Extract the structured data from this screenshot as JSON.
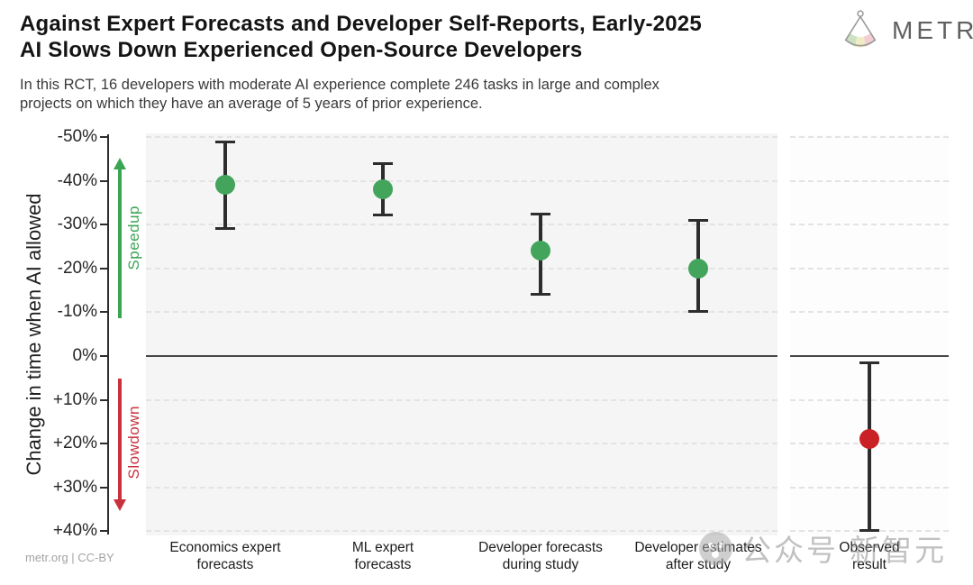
{
  "header": {
    "title_lines": [
      "Against Expert Forecasts and Developer Self-Reports, Early-2025",
      "AI Slows Down Experienced Open-Source Developers"
    ],
    "subtitle_lines": [
      "In this RCT, 16 developers with moderate AI experience complete 246 tasks in large and complex",
      "projects on which they have an average of 5 years of prior experience."
    ],
    "brand": "METR"
  },
  "annotations": {
    "speedup": "Speedup",
    "slowdown": "Slowdown"
  },
  "footer": {
    "credit": "metr.org  |  CC-BY"
  },
  "watermark": {
    "logo": "newzhiyuan-face-icon",
    "text": "公众号 新智元"
  },
  "colors": {
    "green": "#43a45b",
    "red": "#c92125",
    "green_arrow": "#3aa553",
    "red_arrow": "#c9313d",
    "errorbar": "#2d2d2d",
    "panel_bg": "#f5f5f6",
    "zero_line": "#474747"
  },
  "chart_data": {
    "type": "scatter",
    "title": "Against Expert Forecasts and Developer Self-Reports, Early-2025 AI Slows Down Experienced Open-Source Developers",
    "ylabel": "Change in time when AI allowed",
    "ylim": [
      -50,
      40
    ],
    "y_axis_inverted": true,
    "grid": "dashed horizontal",
    "yticks": [
      {
        "value": -50,
        "label": "-50%"
      },
      {
        "value": -40,
        "label": "-40%"
      },
      {
        "value": -30,
        "label": "-30%"
      },
      {
        "value": -20,
        "label": "-20%"
      },
      {
        "value": -10,
        "label": "-10%"
      },
      {
        "value": 0,
        "label": "0%"
      },
      {
        "value": 10,
        "label": "+10%"
      },
      {
        "value": 20,
        "label": "+20%"
      },
      {
        "value": 30,
        "label": "+30%"
      },
      {
        "value": 40,
        "label": "+40%"
      }
    ],
    "points": [
      {
        "category_lines": [
          "Economics expert",
          "forecasts"
        ],
        "value": -39,
        "ci": [
          -49,
          -29
        ],
        "color": "green",
        "panel": "forecasts"
      },
      {
        "category_lines": [
          "ML expert",
          "forecasts"
        ],
        "value": -38,
        "ci": [
          -44,
          -32
        ],
        "color": "green",
        "panel": "forecasts"
      },
      {
        "category_lines": [
          "Developer forecasts",
          "during study"
        ],
        "value": -24,
        "ci": [
          -32.5,
          -14
        ],
        "color": "green",
        "panel": "forecasts"
      },
      {
        "category_lines": [
          "Developer estimates",
          "after study"
        ],
        "value": -20,
        "ci": [
          -31,
          -10
        ],
        "color": "green",
        "panel": "forecasts"
      },
      {
        "category_lines": [
          "Observed",
          "result"
        ],
        "value": 19,
        "ci": [
          1.5,
          40
        ],
        "color": "red",
        "panel": "observed"
      }
    ]
  }
}
